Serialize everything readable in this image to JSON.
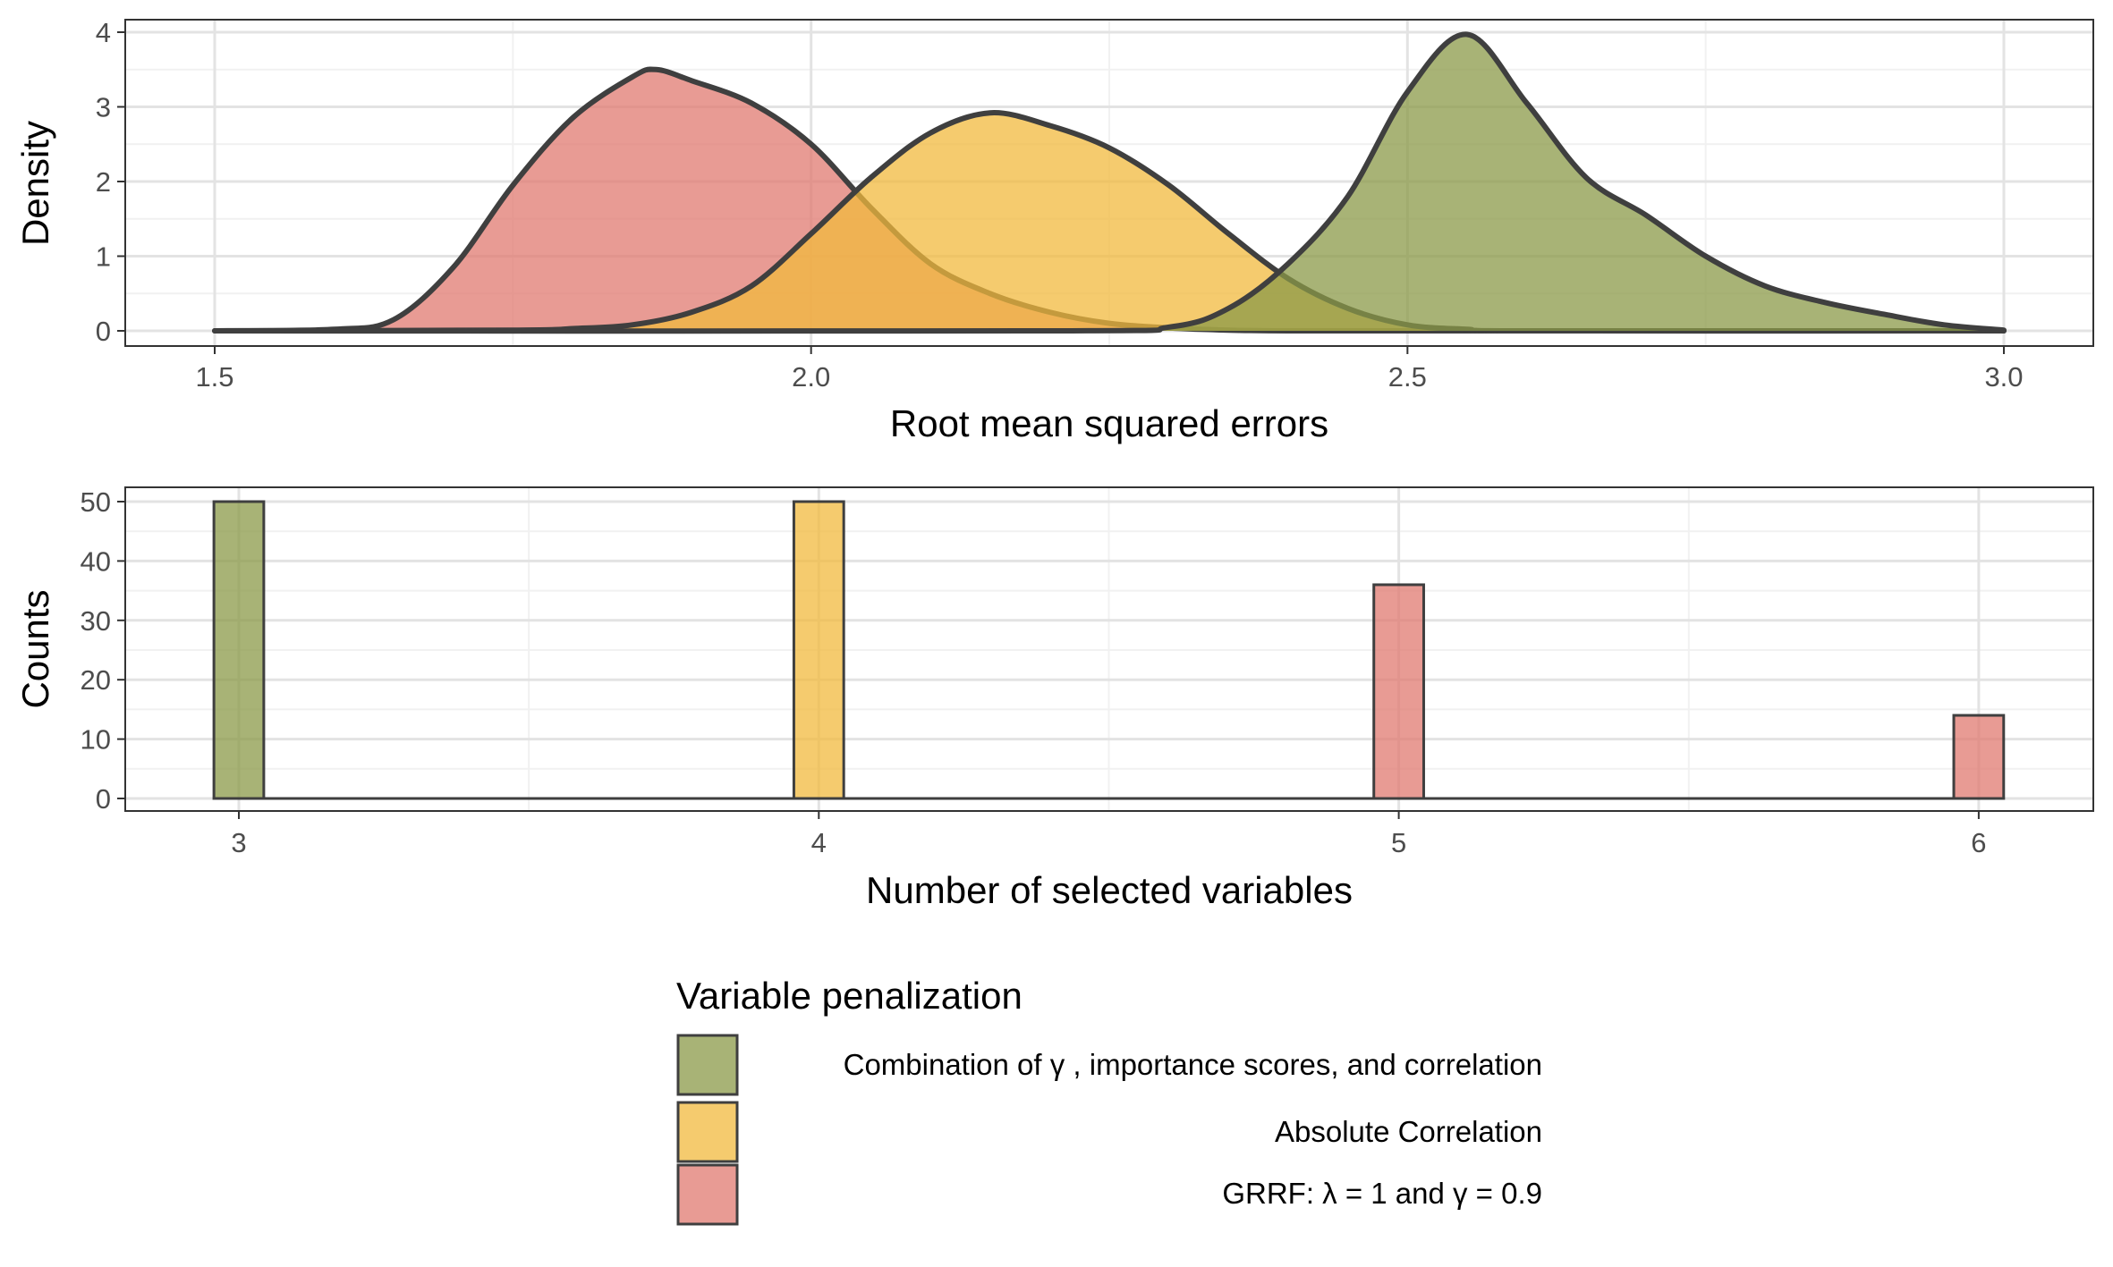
{
  "colors": {
    "combination": "#8b9a48",
    "absolute": "#f1b93e",
    "grrf": "#e07a70",
    "outline": "#3f3f3f",
    "grid_major": "#e3e3e3",
    "grid_minor": "#f1f1f1"
  },
  "legend": {
    "title": "Variable penalization",
    "items": [
      {
        "key": "combination",
        "label": "Combination of  γ , importance scores, and correlation"
      },
      {
        "key": "absolute",
        "label": "Absolute Correlation"
      },
      {
        "key": "grrf",
        "label": "GRRF: λ = 1 and γ = 0.9"
      }
    ]
  },
  "chart_data": [
    {
      "type": "area",
      "xlabel": "Root mean squared errors",
      "ylabel": "Density",
      "xlim": [
        1.5,
        3.0
      ],
      "ylim": [
        0,
        4
      ],
      "x_ticks": [
        "1.5",
        "2.0",
        "2.5",
        "3.0"
      ],
      "y_ticks": [
        "0",
        "1",
        "2",
        "3",
        "4"
      ],
      "grid": true,
      "series": [
        {
          "key": "grrf",
          "x": [
            1.5,
            1.6,
            1.65,
            1.7,
            1.75,
            1.8,
            1.85,
            1.87,
            1.9,
            1.95,
            2.0,
            2.05,
            2.1,
            2.15,
            2.2,
            2.25,
            2.3,
            2.35,
            2.4,
            2.45,
            2.5,
            2.6,
            3.0
          ],
          "y": [
            0,
            0.02,
            0.15,
            0.85,
            1.95,
            2.85,
            3.4,
            3.5,
            3.35,
            3.05,
            2.5,
            1.65,
            0.9,
            0.5,
            0.25,
            0.1,
            0.04,
            0.01,
            0,
            0,
            0,
            0,
            0
          ]
        },
        {
          "key": "absolute",
          "x": [
            1.5,
            1.75,
            1.8,
            1.85,
            1.9,
            1.95,
            2.0,
            2.05,
            2.1,
            2.15,
            2.2,
            2.25,
            2.3,
            2.35,
            2.4,
            2.45,
            2.5,
            2.55,
            2.6,
            3.0
          ],
          "y": [
            0,
            0.01,
            0.03,
            0.08,
            0.25,
            0.6,
            1.3,
            2.05,
            2.65,
            2.92,
            2.75,
            2.45,
            1.95,
            1.3,
            0.7,
            0.3,
            0.08,
            0.02,
            0,
            0
          ]
        },
        {
          "key": "combination",
          "x": [
            1.5,
            2.2,
            2.3,
            2.35,
            2.4,
            2.45,
            2.5,
            2.55,
            2.6,
            2.65,
            2.7,
            2.75,
            2.8,
            2.85,
            2.9,
            2.95,
            3.0
          ],
          "y": [
            0,
            0,
            0.05,
            0.3,
            0.9,
            1.8,
            3.2,
            3.97,
            3.05,
            2.05,
            1.55,
            1.0,
            0.6,
            0.38,
            0.22,
            0.08,
            0.01
          ]
        }
      ]
    },
    {
      "type": "bar",
      "xlabel": "Number of selected variables",
      "ylabel": "Counts",
      "xlim": [
        2.8,
        6.2
      ],
      "ylim": [
        0,
        50
      ],
      "x_ticks": [
        "3",
        "4",
        "5",
        "6"
      ],
      "y_ticks": [
        "0",
        "10",
        "20",
        "30",
        "40",
        "50"
      ],
      "grid": true,
      "series": [
        {
          "key": "combination",
          "x": [
            3
          ],
          "values": [
            50
          ]
        },
        {
          "key": "absolute",
          "x": [
            4
          ],
          "values": [
            50
          ]
        },
        {
          "key": "grrf",
          "x": [
            5,
            6
          ],
          "values": [
            36,
            14
          ]
        }
      ]
    }
  ]
}
